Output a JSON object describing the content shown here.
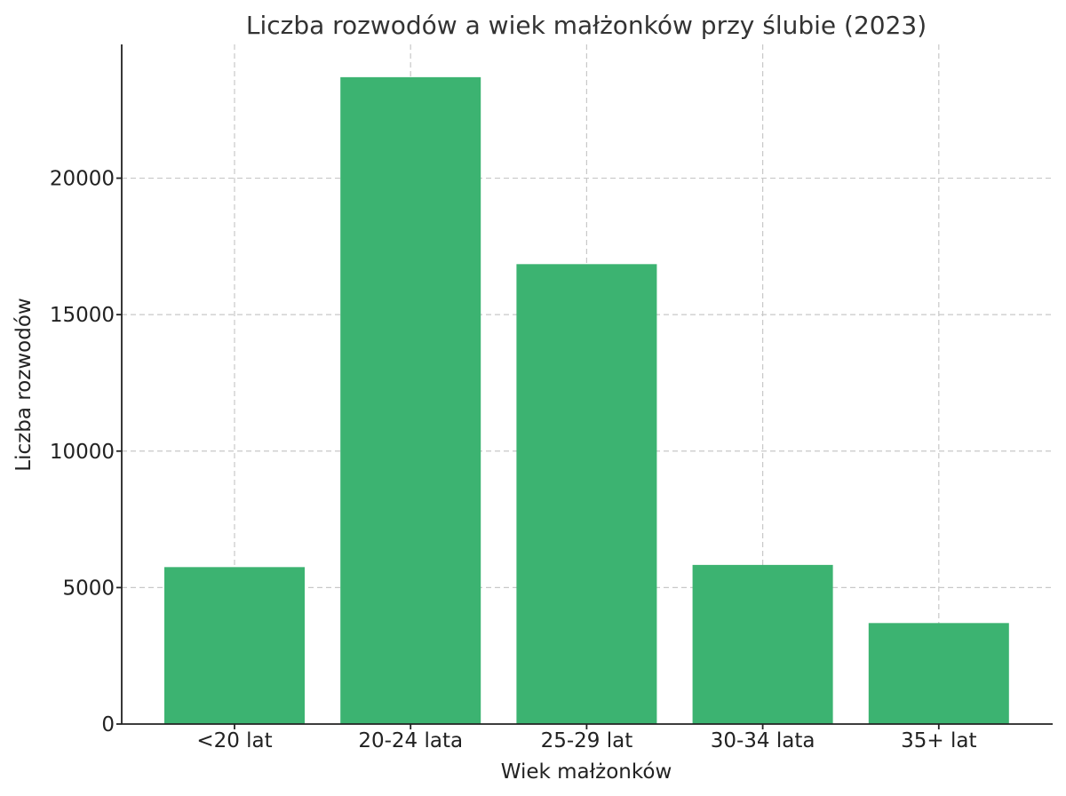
{
  "chart_data": {
    "type": "bar",
    "title": "Liczba rozwodów a wiek małżonków przy ślubie (2023)",
    "xlabel": "Wiek małżonków",
    "ylabel": "Liczba rozwodów",
    "categories": [
      "<20 lat",
      "20-24 lata",
      "25-29 lat",
      "30-34 lata",
      "35+ lat"
    ],
    "values": [
      5750,
      23700,
      16850,
      5830,
      3700
    ],
    "ylim": [
      0,
      24900
    ],
    "yticks": [
      0,
      5000,
      10000,
      15000,
      20000
    ],
    "bar_color": "#3cb371",
    "grid": true,
    "grid_style": "dashed",
    "legend": "none"
  }
}
